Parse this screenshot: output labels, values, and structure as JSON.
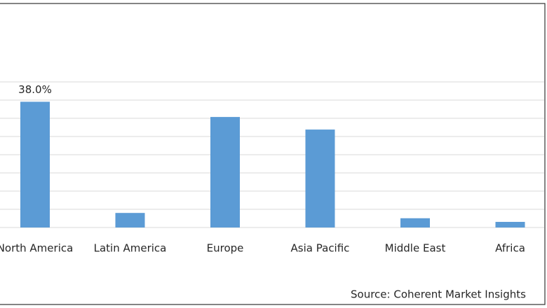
{
  "chart_data": {
    "type": "bar",
    "categories": [
      "North America",
      "Latin America",
      "Europe",
      "Asia Pacific",
      "Middle East",
      "Africa"
    ],
    "values": [
      38.0,
      4.4,
      33.4,
      29.6,
      2.8,
      1.7
    ],
    "value_labels": [
      "38.0%",
      null,
      null,
      null,
      null,
      null
    ],
    "color": "#5b9bd5",
    "ylim": [
      0,
      44
    ],
    "yticks": [
      0,
      5.5,
      11,
      16.5,
      22,
      27.5,
      33,
      38.5,
      44
    ],
    "grid": true,
    "source": "Source: Coherent Market Insights"
  }
}
